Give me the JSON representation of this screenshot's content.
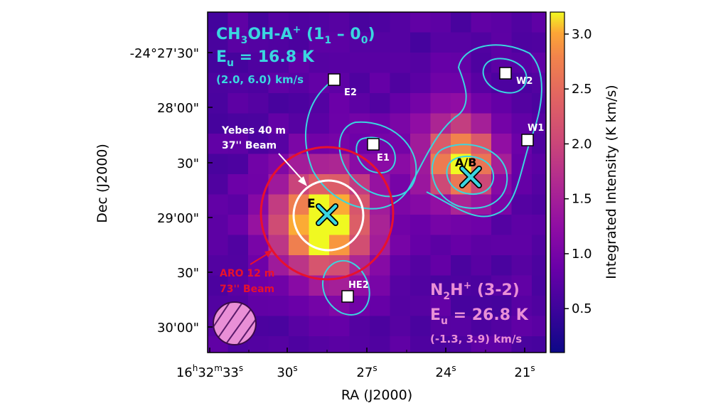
{
  "chart_data": {
    "type": "heatmap",
    "title_lines": {
      "molecule_base": "CH",
      "molecule_sub1": "3",
      "molecule_mid": "OH-A",
      "molecule_sup": "+",
      "transition_open": " (1",
      "transition_sub1": "1",
      "transition_dash": " – 0",
      "transition_sub2": "0",
      "transition_close": ")",
      "energy_prefix": "E",
      "energy_sub": "u",
      "energy_value": " = 16.8 K",
      "velocity_range": "(2.0, 6.0) km/s"
    },
    "map_label": {
      "molecule_base": "N",
      "molecule_sub": "2",
      "molecule_mid": "H",
      "molecule_sup": "+",
      "transition": " (3-2)",
      "energy_prefix": "E",
      "energy_sub": "u",
      "energy_value": " = 26.8 K",
      "velocity_range": "(-1.3, 3.9) km/s"
    },
    "xlabel": "RA (J2000)",
    "ylabel": "Dec (J2000)",
    "colorbar_label": "Integrated Intensity (K km/s)",
    "colorbar_range": [
      0.1,
      3.2
    ],
    "colorbar_ticks": [
      "0.5",
      "1.0",
      "1.5",
      "2.0",
      "2.5",
      "3.0"
    ],
    "colorbar_tick_values": [
      0.5,
      1.0,
      1.5,
      2.0,
      2.5,
      3.0
    ],
    "x_ticks": [
      {
        "h": "16",
        "m": "32",
        "s": "33",
        "full": true
      },
      {
        "s": "30"
      },
      {
        "s": "27"
      },
      {
        "s": "24"
      },
      {
        "s": "21"
      }
    ],
    "y_ticks": [
      "-24°27'30\"",
      "28'00\"",
      "30\"",
      "29'00\"",
      "30\"",
      "30'00\""
    ],
    "sources": [
      {
        "name": "E2",
        "marker": "square"
      },
      {
        "name": "E1",
        "marker": "square"
      },
      {
        "name": "W2",
        "marker": "square"
      },
      {
        "name": "W1",
        "marker": "square"
      },
      {
        "name": "HE2",
        "marker": "square"
      },
      {
        "name": "A/B",
        "marker": "x"
      },
      {
        "name": "E",
        "marker": "x"
      }
    ],
    "beams": [
      {
        "label_line1": "Yebes 40 m",
        "label_line2": "37'' Beam",
        "color": "#ffffff"
      },
      {
        "label_line1": "ARO 12 m",
        "label_line2": "73'' Beam",
        "color": "#e8112d"
      }
    ],
    "contour_color": "#3ad6e0",
    "map_beam_color": "#e060c8",
    "grid": false
  }
}
